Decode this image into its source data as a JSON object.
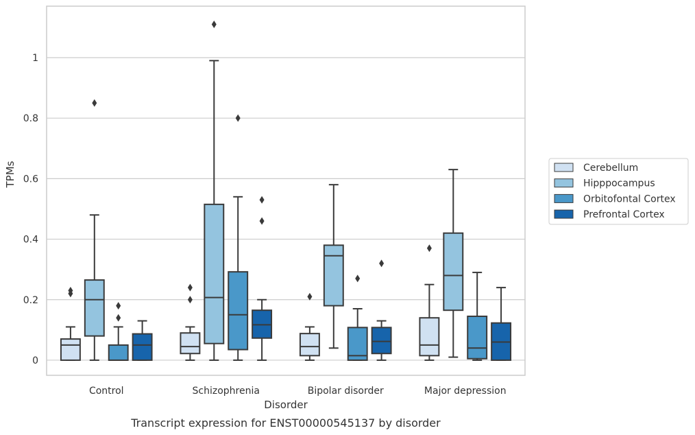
{
  "chart_data": {
    "type": "box",
    "caption": "Transcript expression for ENST00000545137 by disorder",
    "xlabel": "Disorder",
    "ylabel": "TPMs",
    "ylim": [
      -0.05,
      1.17
    ],
    "yticks": [
      0.0,
      0.2,
      0.4,
      0.6,
      0.8,
      1.0
    ],
    "grid": "horizontal",
    "legend_position": "right",
    "categories": [
      "Control",
      "Schizophrenia",
      "Bipolar disorder",
      "Major depression"
    ],
    "series": [
      {
        "name": "Cerebellum",
        "color": "#d0e1f2",
        "boxes": [
          {
            "whisker_low": 0.0,
            "q1": 0.0,
            "median": 0.05,
            "q3": 0.07,
            "whisker_high": 0.11,
            "outliers": [
              0.22,
              0.23
            ]
          },
          {
            "whisker_low": 0.0,
            "q1": 0.022,
            "median": 0.045,
            "q3": 0.09,
            "whisker_high": 0.11,
            "outliers": [
              0.2,
              0.24
            ]
          },
          {
            "whisker_low": 0.0,
            "q1": 0.015,
            "median": 0.045,
            "q3": 0.088,
            "whisker_high": 0.11,
            "outliers": [
              0.21
            ]
          },
          {
            "whisker_low": 0.0,
            "q1": 0.015,
            "median": 0.05,
            "q3": 0.14,
            "whisker_high": 0.25,
            "outliers": [
              0.37
            ]
          }
        ]
      },
      {
        "name": "Hipppocampus",
        "color": "#94c4df",
        "boxes": [
          {
            "whisker_low": 0.0,
            "q1": 0.08,
            "median": 0.2,
            "q3": 0.265,
            "whisker_high": 0.48,
            "outliers": [
              0.85
            ]
          },
          {
            "whisker_low": 0.0,
            "q1": 0.055,
            "median": 0.207,
            "q3": 0.515,
            "whisker_high": 0.99,
            "outliers": [
              1.11
            ]
          },
          {
            "whisker_low": 0.04,
            "q1": 0.18,
            "median": 0.345,
            "q3": 0.38,
            "whisker_high": 0.58,
            "outliers": []
          },
          {
            "whisker_low": 0.01,
            "q1": 0.165,
            "median": 0.28,
            "q3": 0.42,
            "whisker_high": 0.63,
            "outliers": []
          }
        ]
      },
      {
        "name": "Orbitofontal Cortex",
        "color": "#4a98c9",
        "boxes": [
          {
            "whisker_low": 0.0,
            "q1": 0.0,
            "median": 0.0,
            "q3": 0.05,
            "whisker_high": 0.11,
            "outliers": [
              0.14,
              0.18
            ]
          },
          {
            "whisker_low": 0.0,
            "q1": 0.035,
            "median": 0.15,
            "q3": 0.292,
            "whisker_high": 0.54,
            "outliers": [
              0.8
            ]
          },
          {
            "whisker_low": 0.0,
            "q1": 0.0,
            "median": 0.015,
            "q3": 0.108,
            "whisker_high": 0.17,
            "outliers": [
              0.27
            ]
          },
          {
            "whisker_low": 0.0,
            "q1": 0.005,
            "median": 0.04,
            "q3": 0.145,
            "whisker_high": 0.29,
            "outliers": []
          }
        ]
      },
      {
        "name": "Prefrontal Cortex",
        "color": "#1764ab",
        "boxes": [
          {
            "whisker_low": 0.0,
            "q1": 0.0,
            "median": 0.05,
            "q3": 0.087,
            "whisker_high": 0.13,
            "outliers": []
          },
          {
            "whisker_low": 0.0,
            "q1": 0.073,
            "median": 0.117,
            "q3": 0.165,
            "whisker_high": 0.2,
            "outliers": [
              0.46,
              0.53
            ]
          },
          {
            "whisker_low": 0.0,
            "q1": 0.022,
            "median": 0.062,
            "q3": 0.108,
            "whisker_high": 0.13,
            "outliers": [
              0.32
            ]
          },
          {
            "whisker_low": 0.0,
            "q1": 0.0,
            "median": 0.06,
            "q3": 0.123,
            "whisker_high": 0.24,
            "outliers": []
          }
        ]
      }
    ]
  }
}
